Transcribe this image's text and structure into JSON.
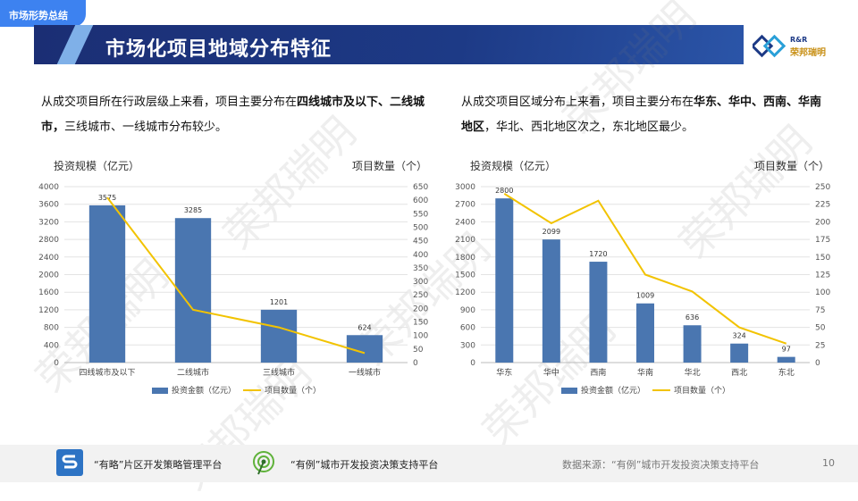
{
  "header": {
    "tag": "市场形势总结",
    "title": "市场化项目地域分布特征",
    "logo_en": "R&R",
    "logo_cn": "荣邦瑞明",
    "watermark": "荣邦瑞明"
  },
  "left_desc": {
    "p1": "从成交项目所在行政层级上来看，项目主要分布在",
    "b1": "四线城市及以下、二线城市，",
    "p2": "三线城市、一线城市分布较少。"
  },
  "right_desc": {
    "p1": "从成交项目区域分布上来看，项目主要分布在",
    "b1": "华东、华中、西南、华南地区",
    "p2": "，华北、西北地区次之，东北地区最少。"
  },
  "footer": {
    "platform1": "“有略”片区开发策略管理平台",
    "platform2": "“有例”城市开发投资决策支持平台",
    "source": "数据来源：“有例”城市开发投资决策支持平台",
    "page": "10"
  },
  "colors": {
    "bar": "#4a76b0",
    "line": "#f2c300",
    "title_bg": "#1d3a86",
    "accent": "#3d82f0"
  },
  "chart_data": [
    {
      "type": "bar",
      "categories": [
        "四线城市及以下",
        "二线城市",
        "三线城市",
        "一线城市"
      ],
      "series": [
        {
          "name": "投资金额（亿元）",
          "type": "bar",
          "axis": "left",
          "values": [
            3575,
            3285,
            1201,
            624
          ]
        },
        {
          "name": "项目数量（个）",
          "type": "line",
          "axis": "right",
          "values": [
            610,
            195,
            130,
            35
          ]
        }
      ],
      "ylabel_left": "投资规模（亿元）",
      "ylabel_right": "项目数量（个）",
      "ylim_left": [
        0,
        4000
      ],
      "ylim_right": [
        0,
        650
      ],
      "yticks_left": [
        0,
        400,
        800,
        1200,
        1600,
        2000,
        2400,
        2800,
        3200,
        3600,
        4000
      ],
      "yticks_right": [
        0,
        50,
        100,
        150,
        200,
        250,
        300,
        350,
        400,
        450,
        500,
        550,
        600,
        650
      ],
      "legend": "bottom",
      "grid": true
    },
    {
      "type": "bar",
      "categories": [
        "华东",
        "华中",
        "西南",
        "华南",
        "华北",
        "西北",
        "东北"
      ],
      "series": [
        {
          "name": "投资金额（亿元）",
          "type": "bar",
          "axis": "left",
          "values": [
            2800,
            2099,
            1720,
            1009,
            636,
            324,
            97
          ]
        },
        {
          "name": "项目数量（个）",
          "type": "line",
          "axis": "right",
          "values": [
            240,
            198,
            230,
            125,
            101,
            50,
            27
          ]
        }
      ],
      "ylabel_left": "投资规模（亿元）",
      "ylabel_right": "项目数量（个）",
      "ylim_left": [
        0,
        3000
      ],
      "ylim_right": [
        0,
        250
      ],
      "yticks_left": [
        0,
        300,
        600,
        900,
        1200,
        1500,
        1800,
        2100,
        2400,
        2700,
        3000
      ],
      "yticks_right": [
        0,
        25,
        50,
        75,
        100,
        125,
        150,
        175,
        200,
        225,
        250
      ],
      "legend": "bottom",
      "grid": true
    }
  ]
}
